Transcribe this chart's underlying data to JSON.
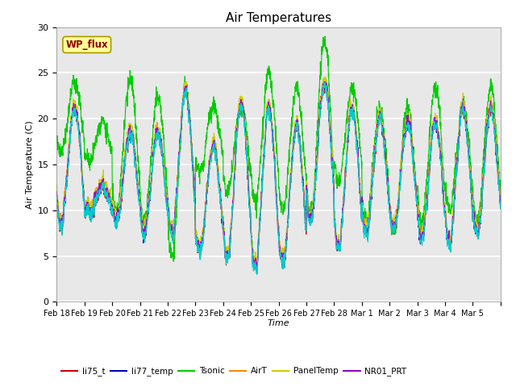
{
  "title": "Air Temperatures",
  "xlabel": "Time",
  "ylabel": "Air Temperature (C)",
  "ylim": [
    0,
    30
  ],
  "yticks": [
    0,
    5,
    10,
    15,
    20,
    25,
    30
  ],
  "annotation_text": "WP_flux",
  "annotation_color": "#8B0000",
  "annotation_bg": "#FFFF99",
  "annotation_edge": "#AA9900",
  "bg_color": "#E8E8E8",
  "fig_color": "#FFFFFF",
  "series_colors": {
    "li75_t": "#CC0000",
    "li77_temp": "#0000BB",
    "Tsonic": "#00CC00",
    "AirT": "#FF8800",
    "PanelTemp": "#CCCC00",
    "NR01_PRT": "#9900CC",
    "AM25T_PRT": "#00CCCC"
  },
  "x_tick_labels": [
    "Feb 18",
    "Feb 19",
    "Feb 20",
    "Feb 21",
    "Feb 22",
    "Feb 23",
    "Feb 24",
    "Feb 25",
    "Feb 26",
    "Feb 27",
    "Feb 28",
    "Mar 1",
    "Mar 2",
    "Mar 3",
    "Mar 4",
    "Mar 5"
  ],
  "n_days": 16,
  "pts_per_day": 144,
  "base_peaks": [
    21,
    12.5,
    18.5,
    18.5,
    23,
    17,
    21.5,
    21,
    19,
    24,
    21,
    20,
    19.5,
    19.5,
    21,
    21
  ],
  "base_mins": [
    8.5,
    9.5,
    8.5,
    7.5,
    7.5,
    5.5,
    5,
    4,
    4.5,
    9,
    6,
    7.5,
    8,
    7,
    6.5,
    7.5
  ],
  "tsonic_peaks": [
    24,
    19.5,
    24.5,
    22.5,
    23.5,
    21.5,
    21.5,
    25,
    23.5,
    28.5,
    23.5,
    21,
    21.5,
    23.5,
    21.5,
    23.5
  ],
  "tsonic_mins": [
    16,
    15,
    10,
    9,
    5.5,
    14,
    12,
    11,
    10,
    10,
    13,
    9,
    8,
    9,
    10,
    9
  ]
}
